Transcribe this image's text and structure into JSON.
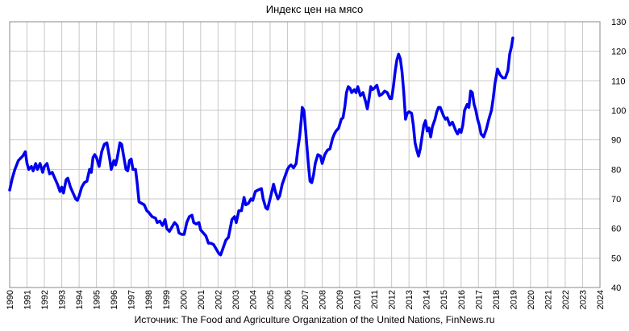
{
  "chart_data": {
    "type": "line",
    "title": "Индекс цен на мясо",
    "source": "Источник: The Food and Agriculture Organization of the United Nations, FinNews.ru",
    "xlabel": "",
    "ylabel": "",
    "xlim": [
      1990,
      2024
    ],
    "ylim": [
      40,
      130
    ],
    "x_ticks": [
      "1990",
      "1991",
      "1992",
      "1993",
      "1994",
      "1995",
      "1996",
      "1997",
      "1998",
      "1999",
      "2000",
      "2001",
      "2002",
      "2003",
      "2004",
      "2005",
      "2006",
      "2007",
      "2008",
      "2009",
      "2010",
      "2011",
      "2012",
      "2013",
      "2014",
      "2015",
      "2016",
      "2017",
      "2018",
      "2019",
      "2020",
      "2021",
      "2022",
      "2023",
      "2024"
    ],
    "y_ticks": [
      40,
      50,
      60,
      70,
      80,
      90,
      100,
      110,
      120,
      130
    ],
    "y_axis_side": "right",
    "grid": true,
    "legend": "none",
    "series": [
      {
        "color": "#0000ee",
        "points": [
          [
            1990.0,
            73
          ],
          [
            1990.15,
            77
          ],
          [
            1990.3,
            80
          ],
          [
            1990.5,
            83
          ],
          [
            1990.75,
            84.5
          ],
          [
            1990.9,
            86
          ],
          [
            1991.0,
            82
          ],
          [
            1991.1,
            80
          ],
          [
            1991.25,
            81
          ],
          [
            1991.35,
            79.5
          ],
          [
            1991.5,
            82
          ],
          [
            1991.6,
            80
          ],
          [
            1991.75,
            82
          ],
          [
            1991.9,
            79
          ],
          [
            1992.0,
            81
          ],
          [
            1992.15,
            82
          ],
          [
            1992.3,
            78.5
          ],
          [
            1992.45,
            79
          ],
          [
            1992.6,
            77
          ],
          [
            1992.75,
            75
          ],
          [
            1992.9,
            72.5
          ],
          [
            1993.0,
            74
          ],
          [
            1993.1,
            72
          ],
          [
            1993.25,
            76.5
          ],
          [
            1993.35,
            77
          ],
          [
            1993.5,
            74
          ],
          [
            1993.65,
            72
          ],
          [
            1993.8,
            70
          ],
          [
            1993.9,
            69.5
          ],
          [
            1994.0,
            71
          ],
          [
            1994.15,
            74
          ],
          [
            1994.3,
            75.5
          ],
          [
            1994.45,
            76
          ],
          [
            1994.6,
            80
          ],
          [
            1994.7,
            79
          ],
          [
            1994.8,
            84
          ],
          [
            1994.9,
            85
          ],
          [
            1995.0,
            84
          ],
          [
            1995.15,
            81
          ],
          [
            1995.3,
            86
          ],
          [
            1995.45,
            88.5
          ],
          [
            1995.6,
            89
          ],
          [
            1995.75,
            84
          ],
          [
            1995.85,
            80
          ],
          [
            1996.0,
            83
          ],
          [
            1996.1,
            81.5
          ],
          [
            1996.2,
            84
          ],
          [
            1996.35,
            89
          ],
          [
            1996.45,
            88.5
          ],
          [
            1996.55,
            85
          ],
          [
            1996.7,
            80
          ],
          [
            1996.8,
            79.5
          ],
          [
            1996.9,
            83
          ],
          [
            1997.0,
            83.5
          ],
          [
            1997.1,
            80
          ],
          [
            1997.25,
            80
          ],
          [
            1997.35,
            75
          ],
          [
            1997.45,
            69
          ],
          [
            1997.6,
            68.5
          ],
          [
            1997.75,
            68
          ],
          [
            1997.9,
            66
          ],
          [
            1998.0,
            65.5
          ],
          [
            1998.2,
            64
          ],
          [
            1998.4,
            63.5
          ],
          [
            1998.5,
            62
          ],
          [
            1998.65,
            62.5
          ],
          [
            1998.8,
            61
          ],
          [
            1998.95,
            63
          ],
          [
            1999.05,
            60
          ],
          [
            1999.2,
            59
          ],
          [
            1999.35,
            60.5
          ],
          [
            1999.5,
            62
          ],
          [
            1999.65,
            61
          ],
          [
            1999.75,
            58.5
          ],
          [
            1999.9,
            58
          ],
          [
            2000.05,
            58
          ],
          [
            2000.2,
            62
          ],
          [
            2000.35,
            64
          ],
          [
            2000.5,
            64.5
          ],
          [
            2000.6,
            62
          ],
          [
            2000.75,
            61.5
          ],
          [
            2000.9,
            62
          ],
          [
            2001.0,
            59.5
          ],
          [
            2001.15,
            58.5
          ],
          [
            2001.3,
            57.5
          ],
          [
            2001.45,
            55
          ],
          [
            2001.6,
            55
          ],
          [
            2001.75,
            54.5
          ],
          [
            2001.9,
            53
          ],
          [
            2002.05,
            51.5
          ],
          [
            2002.15,
            51
          ],
          [
            2002.3,
            53.5
          ],
          [
            2002.45,
            56
          ],
          [
            2002.6,
            57
          ],
          [
            2002.7,
            60
          ],
          [
            2002.8,
            63
          ],
          [
            2002.95,
            64
          ],
          [
            2003.05,
            62
          ],
          [
            2003.2,
            66
          ],
          [
            2003.35,
            66
          ],
          [
            2003.5,
            70.5
          ],
          [
            2003.6,
            68
          ],
          [
            2003.75,
            68.5
          ],
          [
            2003.9,
            70
          ],
          [
            2004.0,
            69.5
          ],
          [
            2004.15,
            72.5
          ],
          [
            2004.3,
            73
          ],
          [
            2004.5,
            73.5
          ],
          [
            2004.6,
            70
          ],
          [
            2004.75,
            67
          ],
          [
            2004.85,
            66.5
          ],
          [
            2005.0,
            70
          ],
          [
            2005.1,
            72.5
          ],
          [
            2005.2,
            75
          ],
          [
            2005.3,
            72.5
          ],
          [
            2005.45,
            70
          ],
          [
            2005.55,
            71
          ],
          [
            2005.7,
            75
          ],
          [
            2005.85,
            77.5
          ],
          [
            2006.0,
            80
          ],
          [
            2006.1,
            81
          ],
          [
            2006.2,
            81.5
          ],
          [
            2006.35,
            80.5
          ],
          [
            2006.5,
            82
          ],
          [
            2006.6,
            87
          ],
          [
            2006.7,
            91
          ],
          [
            2006.8,
            97
          ],
          [
            2006.85,
            101
          ],
          [
            2006.95,
            100
          ],
          [
            2007.05,
            93
          ],
          [
            2007.2,
            82
          ],
          [
            2007.3,
            76
          ],
          [
            2007.4,
            75.5
          ],
          [
            2007.5,
            78
          ],
          [
            2007.6,
            82
          ],
          [
            2007.75,
            85
          ],
          [
            2007.9,
            84.5
          ],
          [
            2008.0,
            82
          ],
          [
            2008.15,
            85
          ],
          [
            2008.3,
            86.5
          ],
          [
            2008.45,
            87
          ],
          [
            2008.6,
            90.5
          ],
          [
            2008.7,
            92
          ],
          [
            2008.8,
            93
          ],
          [
            2008.95,
            94
          ],
          [
            2009.1,
            97
          ],
          [
            2009.2,
            97.5
          ],
          [
            2009.3,
            101
          ],
          [
            2009.4,
            106
          ],
          [
            2009.5,
            108
          ],
          [
            2009.6,
            107.5
          ],
          [
            2009.7,
            106
          ],
          [
            2009.85,
            107
          ],
          [
            2009.95,
            106
          ],
          [
            2010.05,
            108
          ],
          [
            2010.2,
            105
          ],
          [
            2010.35,
            106
          ],
          [
            2010.5,
            103
          ],
          [
            2010.6,
            100.5
          ],
          [
            2010.7,
            104
          ],
          [
            2010.8,
            108
          ],
          [
            2010.9,
            107
          ],
          [
            2011.0,
            107.5
          ],
          [
            2011.15,
            108.5
          ],
          [
            2011.3,
            105
          ],
          [
            2011.45,
            105.5
          ],
          [
            2011.6,
            106.5
          ],
          [
            2011.75,
            106
          ],
          [
            2011.9,
            104
          ],
          [
            2012.0,
            104
          ],
          [
            2012.1,
            108
          ],
          [
            2012.2,
            113
          ],
          [
            2012.3,
            117
          ],
          [
            2012.4,
            119
          ],
          [
            2012.5,
            117.5
          ],
          [
            2012.6,
            113
          ],
          [
            2012.7,
            106
          ],
          [
            2012.8,
            97
          ],
          [
            2012.9,
            99
          ],
          [
            2013.0,
            99.5
          ],
          [
            2013.15,
            99
          ],
          [
            2013.25,
            95
          ],
          [
            2013.35,
            89
          ],
          [
            2013.45,
            86.5
          ],
          [
            2013.55,
            84.5
          ],
          [
            2013.65,
            87
          ],
          [
            2013.75,
            91
          ],
          [
            2013.85,
            95
          ],
          [
            2013.95,
            96.5
          ],
          [
            2014.05,
            93
          ],
          [
            2014.15,
            94
          ],
          [
            2014.25,
            91
          ],
          [
            2014.35,
            94.5
          ],
          [
            2014.5,
            97
          ],
          [
            2014.6,
            99.5
          ],
          [
            2014.7,
            101
          ],
          [
            2014.8,
            101
          ],
          [
            2014.9,
            99.5
          ],
          [
            2015.0,
            98
          ],
          [
            2015.1,
            97
          ],
          [
            2015.2,
            97.5
          ],
          [
            2015.35,
            95
          ],
          [
            2015.5,
            96
          ],
          [
            2015.6,
            94.5
          ],
          [
            2015.7,
            93
          ],
          [
            2015.8,
            92
          ],
          [
            2015.9,
            93.5
          ],
          [
            2016.0,
            92.5
          ],
          [
            2016.1,
            95
          ],
          [
            2016.2,
            100
          ],
          [
            2016.35,
            102
          ],
          [
            2016.45,
            101
          ],
          [
            2016.55,
            106.5
          ],
          [
            2016.65,
            106
          ],
          [
            2016.75,
            102
          ],
          [
            2016.85,
            100
          ],
          [
            2016.95,
            97
          ],
          [
            2017.05,
            95
          ],
          [
            2017.15,
            92
          ],
          [
            2017.3,
            91
          ],
          [
            2017.45,
            93.5
          ],
          [
            2017.6,
            97
          ],
          [
            2017.75,
            100
          ],
          [
            2017.85,
            104
          ],
          [
            2017.95,
            109
          ],
          [
            2018.1,
            114
          ],
          [
            2018.25,
            112
          ],
          [
            2018.4,
            111
          ],
          [
            2018.55,
            111
          ],
          [
            2018.7,
            113.5
          ],
          [
            2018.8,
            119
          ],
          [
            2018.9,
            121.5
          ],
          [
            2018.98,
            124.5
          ]
        ]
      }
    ]
  }
}
